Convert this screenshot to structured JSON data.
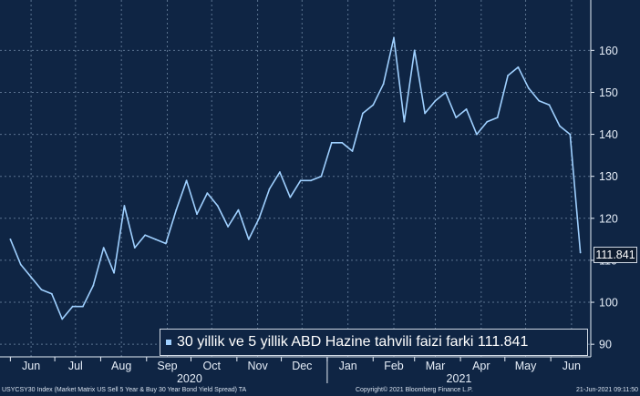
{
  "chart_data": {
    "type": "line",
    "series": [
      {
        "name": "30 yillik ve 5 yillik ABD Hazine tahvili faizi farki",
        "color": "#9fd0ff",
        "x": [
          "2020-06-01",
          "2020-06-08",
          "2020-06-15",
          "2020-06-22",
          "2020-06-29",
          "2020-07-06",
          "2020-07-13",
          "2020-07-20",
          "2020-07-27",
          "2020-08-03",
          "2020-08-10",
          "2020-08-17",
          "2020-08-24",
          "2020-08-31",
          "2020-09-07",
          "2020-09-14",
          "2020-09-21",
          "2020-09-28",
          "2020-10-05",
          "2020-10-12",
          "2020-10-19",
          "2020-10-26",
          "2020-11-02",
          "2020-11-09",
          "2020-11-16",
          "2020-11-23",
          "2020-11-30",
          "2020-12-07",
          "2020-12-14",
          "2020-12-21",
          "2020-12-28",
          "2021-01-04",
          "2021-01-11",
          "2021-01-18",
          "2021-01-25",
          "2021-02-01",
          "2021-02-08",
          "2021-02-15",
          "2021-02-22",
          "2021-03-01",
          "2021-03-08",
          "2021-03-15",
          "2021-03-22",
          "2021-03-29",
          "2021-04-05",
          "2021-04-12",
          "2021-04-19",
          "2021-04-26",
          "2021-05-03",
          "2021-05-10",
          "2021-05-17",
          "2021-05-24",
          "2021-05-31",
          "2021-06-07",
          "2021-06-14",
          "2021-06-21"
        ],
        "values": [
          115,
          109,
          106,
          103,
          102,
          96,
          99,
          99,
          104,
          113,
          107,
          123,
          113,
          116,
          115,
          114,
          122,
          129,
          121,
          126,
          123,
          118,
          122,
          115,
          120,
          127,
          131,
          125,
          129,
          129,
          130,
          138,
          138,
          136,
          145,
          147,
          152,
          163,
          143,
          160,
          145,
          148,
          150,
          144,
          146,
          140,
          143,
          144,
          154,
          156,
          151,
          148,
          147,
          142,
          140,
          111.841
        ]
      }
    ],
    "x_range": [
      "2020-05-25",
      "2021-06-28"
    ],
    "x_ticks": [
      {
        "date": "2020-06-15",
        "label": "Jun"
      },
      {
        "date": "2020-07-15",
        "label": "Jul"
      },
      {
        "date": "2020-08-15",
        "label": "Aug"
      },
      {
        "date": "2020-09-15",
        "label": "Sep"
      },
      {
        "date": "2020-10-15",
        "label": "Oct"
      },
      {
        "date": "2020-11-15",
        "label": "Nov"
      },
      {
        "date": "2020-12-15",
        "label": "Dec"
      },
      {
        "date": "2021-01-15",
        "label": "Jan"
      },
      {
        "date": "2021-02-15",
        "label": "Feb"
      },
      {
        "date": "2021-03-15",
        "label": "Mar"
      },
      {
        "date": "2021-04-15",
        "label": "Apr"
      },
      {
        "date": "2021-05-15",
        "label": "May"
      },
      {
        "date": "2021-06-15",
        "label": "Jun"
      }
    ],
    "years": [
      {
        "date": "2020-09-30",
        "label": "2020"
      },
      {
        "date": "2021-03-31",
        "label": "2021"
      }
    ],
    "year_dividers": [
      "2021-01-01"
    ],
    "ylim": [
      87,
      172
    ],
    "y_ticks": [
      90,
      100,
      110,
      120,
      130,
      140,
      150,
      160
    ],
    "grid": "dashed",
    "legend_position": "bottom-right",
    "last_value_label": "111.841",
    "colors": {
      "background": "#0f2544",
      "line": "#9fd0ff",
      "grid": "#5b7390"
    }
  },
  "legend": {
    "label": "30 yillik ve 5 yillik ABD Hazine tahvili faizi farki 111.841"
  },
  "footer": {
    "source": "USYCSY30 Index (Market Matrix US Sell 5 Year & Buy 30 Year Bond Yield Spread) TA",
    "copyright": "Copyright© 2021 Bloomberg Finance L.P.",
    "timestamp": "21-Jun-2021 09:11:50"
  }
}
